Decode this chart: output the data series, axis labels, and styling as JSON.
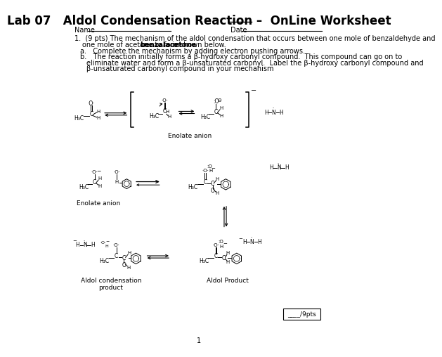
{
  "title": "Lab 07   Aldol Condensation Reaction –  OnLine Worksheet",
  "name_label": "Name",
  "date_label": "Date",
  "question_text1": "1.  (9 pts) The mechanism of the aldol condensation that occurs between one mole of benzaldehyde and",
  "question_text2": "one mole of acetone to form",
  "bold_word": "benzalacetone",
  "question_text3": "is shown below.",
  "part_a": "a.   Complete the mechanism by adding electron pushing arrows.",
  "part_b1": "b.   The reaction initially forms a β-hydroxy carbonyl compound.  This compound can go on to",
  "part_b2": "eliminate water and form a β-unsaturated carbonyl.  Label the β-hydroxy carbonyl compound and",
  "part_b3": "β-unsaturated carbonyl compound in your mechanism",
  "enolate_label1": "Enolate anion",
  "enolate_label2": "Enolate anion",
  "aldol_condensation_label": "Aldol condensation\nproduct",
  "aldol_product_label": "Aldol Product",
  "pts_box": "____/9pts",
  "page_num": "1",
  "bg_color": "#ffffff",
  "text_color": "#000000",
  "font_size_title": 12,
  "font_size_body": 7.0,
  "font_size_label": 6.5,
  "font_size_chem": 5.5
}
